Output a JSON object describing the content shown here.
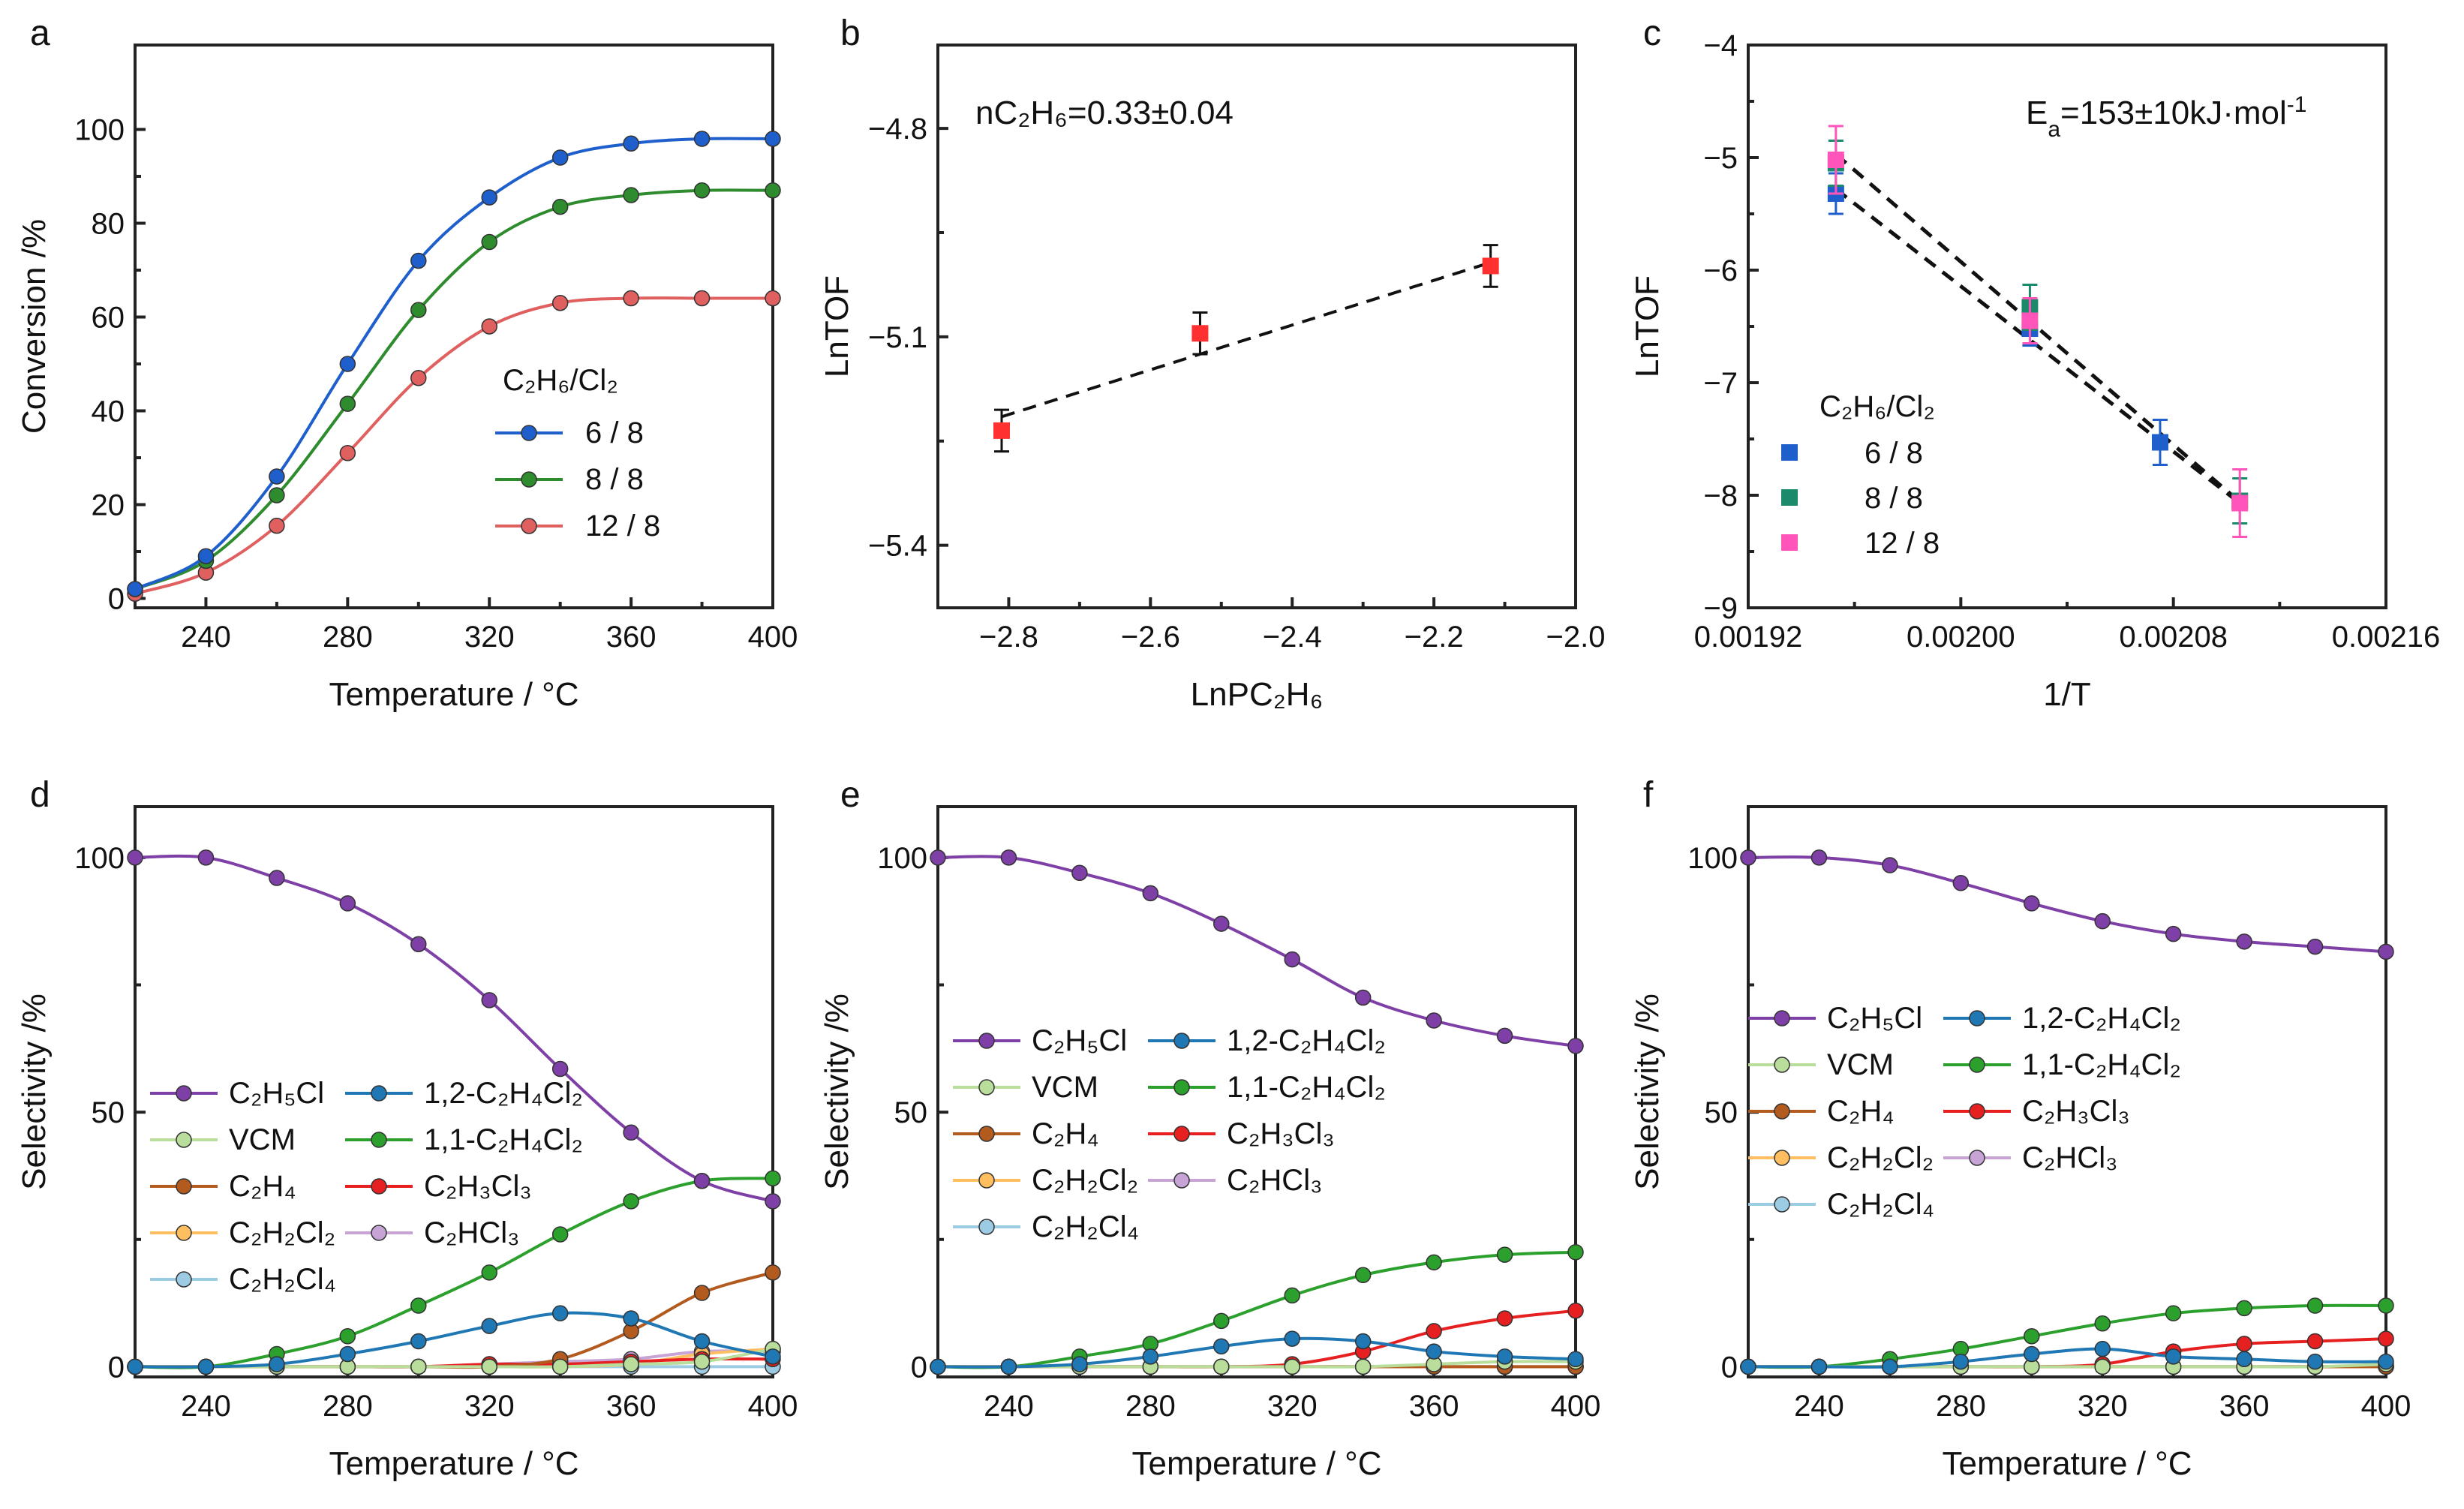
{
  "colors": {
    "blue": "#1f5fcc",
    "green": "#2e8b2e",
    "red": "#e06060",
    "purple": "#7e3fa6",
    "teal": "#1f77b4",
    "lightgreen": "#b9dd9a",
    "lgreen2": "#2ca02c",
    "brown": "#b35a1f",
    "red2": "#e62020",
    "orange": "#ffbf60",
    "lilac": "#c7a3d6",
    "lightblue": "#9ccbe4",
    "sqblue": "#1f5fcc",
    "sqgreen": "#1a8a6a",
    "sqpink": "#ff55bb",
    "sqred": "#ff3030"
  },
  "chart_data": [
    {
      "id": "a",
      "panel": "a",
      "type": "line",
      "xlabel": "Temperature / °C",
      "ylabel": "Conversion /%",
      "xlim": [
        220,
        400
      ],
      "ylim": [
        -2,
        118
      ],
      "xticks": [
        240,
        280,
        320,
        360,
        400
      ],
      "yticks": [
        0,
        20,
        40,
        60,
        80,
        100
      ],
      "x": [
        220,
        240,
        260,
        280,
        300,
        320,
        340,
        360,
        380,
        400
      ],
      "legend_title": "C₂H₆/Cl₂",
      "series": [
        {
          "name": "6 / 8",
          "color": "#1f5fcc",
          "values": [
            2,
            9,
            26,
            50,
            72,
            85.5,
            94,
            97,
            98,
            98
          ]
        },
        {
          "name": "8 / 8",
          "color": "#2e8b2e",
          "values": [
            2,
            8,
            22,
            41.5,
            61.5,
            76,
            83.5,
            86,
            87,
            87
          ]
        },
        {
          "name": "12 / 8",
          "color": "#e06060",
          "values": [
            1,
            5.5,
            15.5,
            31,
            47,
            58,
            63,
            64,
            64,
            64
          ]
        }
      ]
    },
    {
      "id": "b",
      "panel": "b",
      "type": "scatter",
      "xlabel": "LnP",
      "xlabel_sub": "C2H6",
      "ylabel": "LnTOF",
      "xlim": [
        -2.9,
        -2.0
      ],
      "ylim": [
        -5.49,
        -4.68
      ],
      "xticks": [
        -2.8,
        -2.6,
        -2.4,
        -2.2,
        -2.0
      ],
      "yticks": [
        -5.4,
        -5.1,
        -4.8
      ],
      "xtick_labels": [
        "−2.8",
        "−2.6",
        "−2.4",
        "−2.2",
        "−2.0"
      ],
      "ytick_labels": [
        "−5.4",
        "−5.1",
        "−4.8"
      ],
      "annotation": "n",
      "annotation_sub": "C2H6",
      "annotation_rest": "=0.33±0.04",
      "points": {
        "x": [
          -2.81,
          -2.53,
          -2.12
        ],
        "y": [
          -5.235,
          -5.095,
          -4.998
        ],
        "err": [
          0.03,
          0.03,
          0.03
        ],
        "color": "#ff3030"
      },
      "fit": {
        "x": [
          -2.81,
          -2.12
        ],
        "y": [
          -5.215,
          -4.993
        ]
      }
    },
    {
      "id": "c",
      "panel": "c",
      "type": "scatter",
      "xlabel": "1/T",
      "ylabel": "LnTOF",
      "xlim": [
        0.00192,
        0.00216
      ],
      "ylim": [
        -9,
        -4
      ],
      "xticks": [
        0.00192,
        0.002,
        0.00208,
        0.00216
      ],
      "yticks": [
        -9,
        -8,
        -7,
        -6,
        -5,
        -4
      ],
      "xtick_labels": [
        "0.00192",
        "0.00200",
        "0.00208",
        "0.00216"
      ],
      "ytick_labels": [
        "−9",
        "−8",
        "−7",
        "−6",
        "−5",
        "−4"
      ],
      "annotation": "E",
      "annotation_sub": "a",
      "annotation_rest": "=153±10kJ·mol",
      "annotation_sup": "-1",
      "legend_title": "C₂H₆/Cl₂",
      "series": [
        {
          "name": "6 / 8",
          "color": "#1f5fcc",
          "x": [
            0.001953,
            0.002026,
            0.002075
          ],
          "y": [
            -5.32,
            -6.52,
            -7.53
          ],
          "err": [
            0.18,
            0.15,
            0.2
          ]
        },
        {
          "name": "8 / 8",
          "color": "#1a8a6a",
          "x": [
            0.001953,
            0.002026,
            0.002105
          ],
          "y": [
            -5.05,
            -6.33,
            -8.05
          ],
          "err": [
            0.2,
            0.2,
            0.2
          ]
        },
        {
          "name": "12 / 8",
          "color": "#ff55bb",
          "x": [
            0.001953,
            0.002026,
            0.002105
          ],
          "y": [
            -5.02,
            -6.45,
            -8.07
          ],
          "err": [
            0.3,
            0.2,
            0.3
          ]
        }
      ],
      "fits": [
        {
          "x": [
            0.001953,
            0.002105
          ],
          "y": [
            -4.97,
            -8.06
          ]
        },
        {
          "x": [
            0.001953,
            0.002105
          ],
          "y": [
            -5.28,
            -8.07
          ]
        }
      ]
    },
    {
      "id": "d",
      "panel": "d",
      "type": "line",
      "xlabel": "Temperature / °C",
      "ylabel": "Selectivity /%",
      "xlim": [
        220,
        400
      ],
      "ylim": [
        -2,
        110
      ],
      "xticks": [
        240,
        280,
        320,
        360,
        400
      ],
      "yticks": [
        0,
        50,
        100
      ],
      "x": [
        220,
        240,
        260,
        280,
        300,
        320,
        340,
        360,
        380,
        400
      ],
      "series": [
        {
          "name": "C₂H₅Cl",
          "color": "#7e3fa6",
          "values": [
            100,
            100,
            96,
            91,
            83,
            72,
            58.5,
            46,
            36.5,
            32.5
          ]
        },
        {
          "name": "1,2-C₂H₄Cl₂",
          "color": "#1f77b4",
          "values": [
            0,
            0,
            0.5,
            2.5,
            5,
            8,
            10.5,
            9.5,
            5,
            2
          ]
        },
        {
          "name": "VCM",
          "color": "#b9dd9a",
          "values": [
            0,
            0,
            0,
            0,
            0,
            0,
            0,
            0.5,
            1,
            3.5
          ]
        },
        {
          "name": "1,1-C₂H₄Cl₂",
          "color": "#2ca02c",
          "values": [
            0,
            0,
            2.5,
            6,
            12,
            18.5,
            26,
            32.5,
            36.5,
            37
          ]
        },
        {
          "name": "C₂H₄",
          "color": "#b35a1f",
          "values": [
            0,
            0,
            0,
            0,
            0,
            0,
            1.5,
            7,
            14.5,
            18.5
          ]
        },
        {
          "name": "C₂H₃Cl₃",
          "color": "#e62020",
          "values": [
            0,
            0,
            0,
            0,
            0,
            0.5,
            0.5,
            1,
            1.5,
            1.5
          ]
        },
        {
          "name": "C₂H₂Cl₂",
          "color": "#ffbf60",
          "values": [
            0,
            0,
            0,
            0,
            0,
            0,
            0,
            0.5,
            2.5,
            3.5
          ]
        },
        {
          "name": "C₂HCl₃",
          "color": "#c7a3d6",
          "values": [
            0,
            0,
            0,
            0,
            0,
            0.5,
            1,
            1.5,
            3,
            3
          ]
        },
        {
          "name": "C₂H₂Cl₄",
          "color": "#9ccbe4",
          "values": [
            0,
            0,
            0,
            0,
            0,
            0,
            0,
            0,
            0,
            0
          ]
        }
      ]
    },
    {
      "id": "e",
      "panel": "e",
      "type": "line",
      "xlabel": "Temperature / °C",
      "ylabel": "Selectivity /%",
      "xlim": [
        220,
        400
      ],
      "ylim": [
        -2,
        110
      ],
      "xticks": [
        240,
        280,
        320,
        360,
        400
      ],
      "yticks": [
        0,
        50,
        100
      ],
      "x": [
        220,
        240,
        260,
        280,
        300,
        320,
        340,
        360,
        380,
        400
      ],
      "series": [
        {
          "name": "C₂H₅Cl",
          "color": "#7e3fa6",
          "values": [
            100,
            100,
            97,
            93,
            87,
            80,
            72.5,
            68,
            65,
            63
          ]
        },
        {
          "name": "1,2-C₂H₄Cl₂",
          "color": "#1f77b4",
          "values": [
            0,
            0,
            0.5,
            2,
            4,
            5.5,
            5,
            3,
            2,
            1.5
          ]
        },
        {
          "name": "VCM",
          "color": "#b9dd9a",
          "values": [
            0,
            0,
            0,
            0,
            0,
            0,
            0,
            0.5,
            1,
            1
          ]
        },
        {
          "name": "1,1-C₂H₄Cl₂",
          "color": "#2ca02c",
          "values": [
            0,
            0,
            2,
            4.5,
            9,
            14,
            18,
            20.5,
            22,
            22.5
          ]
        },
        {
          "name": "C₂H₄",
          "color": "#b35a1f",
          "values": [
            0,
            0,
            0,
            0,
            0,
            0,
            0,
            0,
            0,
            0
          ]
        },
        {
          "name": "C₂H₃Cl₃",
          "color": "#e62020",
          "values": [
            0,
            0,
            0,
            0,
            0,
            0.5,
            3,
            7,
            9.5,
            11
          ]
        },
        {
          "name": "C₂H₂Cl₂",
          "color": "#ffbf60",
          "values": [
            0,
            0,
            0,
            0,
            0,
            0,
            0,
            0,
            0,
            0
          ]
        },
        {
          "name": "C₂HCl₃",
          "color": "#c7a3d6",
          "values": [
            0,
            0,
            0,
            0,
            0,
            0,
            0,
            0,
            0,
            0
          ]
        },
        {
          "name": "C₂H₂Cl₄",
          "color": "#9ccbe4",
          "values": [
            0,
            0,
            0,
            0,
            0,
            0,
            0,
            0,
            0,
            0
          ]
        }
      ]
    },
    {
      "id": "f",
      "panel": "f",
      "type": "line",
      "xlabel": "Temperature / °C",
      "ylabel": "Selectivity /%",
      "xlim": [
        220,
        400
      ],
      "ylim": [
        -2,
        110
      ],
      "xticks": [
        240,
        280,
        320,
        360,
        400
      ],
      "yticks": [
        0,
        50,
        100
      ],
      "x": [
        220,
        240,
        260,
        280,
        300,
        320,
        340,
        360,
        380,
        400
      ],
      "series": [
        {
          "name": "C₂H₅Cl",
          "color": "#7e3fa6",
          "values": [
            100,
            100,
            98.5,
            95,
            91,
            87.5,
            85,
            83.5,
            82.5,
            81.5
          ]
        },
        {
          "name": "1,2-C₂H₄Cl₂",
          "color": "#1f77b4",
          "values": [
            0,
            0,
            0,
            1,
            2.5,
            3.5,
            2,
            1.5,
            1,
            1
          ]
        },
        {
          "name": "VCM",
          "color": "#b9dd9a",
          "values": [
            0,
            0,
            0,
            0,
            0,
            0,
            0,
            0,
            0,
            0.5
          ]
        },
        {
          "name": "1,1-C₂H₄Cl₂",
          "color": "#2ca02c",
          "values": [
            0,
            0,
            1.5,
            3.5,
            6,
            8.5,
            10.5,
            11.5,
            12,
            12
          ]
        },
        {
          "name": "C₂H₄",
          "color": "#b35a1f",
          "values": [
            0,
            0,
            0,
            0,
            0,
            0,
            0,
            0,
            0,
            0
          ]
        },
        {
          "name": "C₂H₃Cl₃",
          "color": "#e62020",
          "values": [
            0,
            0,
            0,
            0,
            0,
            0.5,
            3,
            4.5,
            5,
            5.5
          ]
        },
        {
          "name": "C₂H₂Cl₂",
          "color": "#ffbf60",
          "values": [
            0,
            0,
            0,
            0,
            0,
            0,
            0,
            0,
            0,
            0
          ]
        },
        {
          "name": "C₂HCl₃",
          "color": "#c7a3d6",
          "values": [
            0,
            0,
            0,
            0,
            0,
            0,
            0,
            0,
            0,
            0
          ]
        },
        {
          "name": "C₂H₂Cl₄",
          "color": "#9ccbe4",
          "values": [
            0,
            0,
            0,
            0,
            0,
            0,
            0,
            0,
            0,
            0
          ]
        }
      ]
    }
  ]
}
